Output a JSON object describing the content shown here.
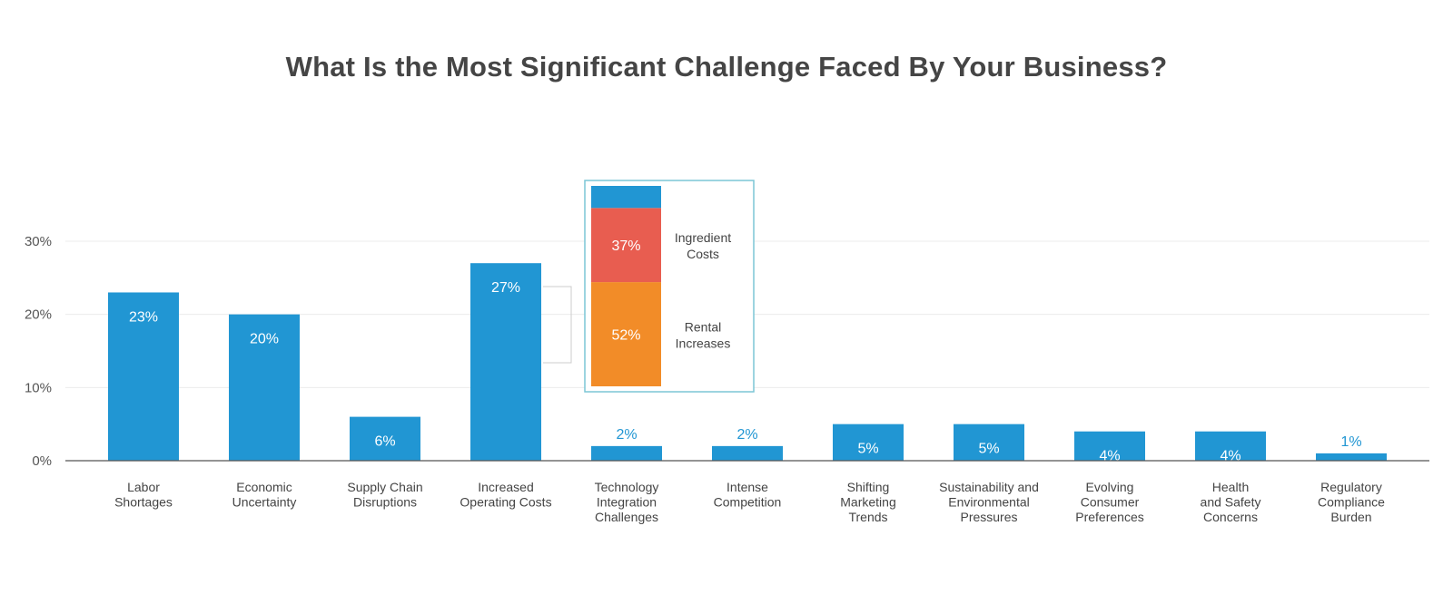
{
  "chart_data": {
    "type": "bar",
    "title": "What Is the Most Significant Challenge Faced By Your Business?",
    "xlabel": "",
    "ylabel": "",
    "ylim": [
      0,
      30
    ],
    "yticks": [
      0,
      10,
      20,
      30
    ],
    "ytick_labels": [
      "0%",
      "10%",
      "20%",
      "30%"
    ],
    "grid": true,
    "categories": [
      [
        "Labor",
        "Shortages"
      ],
      [
        "Economic",
        "Uncertainty"
      ],
      [
        "Supply Chain",
        "Disruptions"
      ],
      [
        "Increased",
        "Operating Costs"
      ],
      [
        "Technology",
        "Integration",
        "Challenges"
      ],
      [
        "Intense",
        "Competition"
      ],
      [
        "Shifting",
        "Marketing",
        "Trends"
      ],
      [
        "Sustainability and",
        "Environmental",
        "Pressures"
      ],
      [
        "Evolving",
        "Consumer",
        "Preferences"
      ],
      [
        "Health",
        "and Safety",
        "Concerns"
      ],
      [
        "Regulatory",
        "Compliance",
        "Burden"
      ]
    ],
    "values": [
      23,
      20,
      6,
      27,
      2,
      2,
      5,
      5,
      4,
      4,
      1
    ],
    "value_labels": [
      "23%",
      "20%",
      "6%",
      "27%",
      "2%",
      "2%",
      "5%",
      "5%",
      "4%",
      "4%",
      "1%"
    ],
    "bar_color": "#2196d3",
    "breakdown": {
      "of_category": "Increased Operating Costs",
      "segments": [
        {
          "name": [
            "Rental",
            "Increases"
          ],
          "value": 52,
          "label": "52%",
          "color": "#f28c28"
        },
        {
          "name": [
            "Ingredient",
            "Costs"
          ],
          "value": 37,
          "label": "37%",
          "color": "#e85d50"
        },
        {
          "name": [],
          "value": 11,
          "label": "",
          "color": "#2196d3"
        }
      ],
      "border_color": "#7cc6d6"
    }
  }
}
